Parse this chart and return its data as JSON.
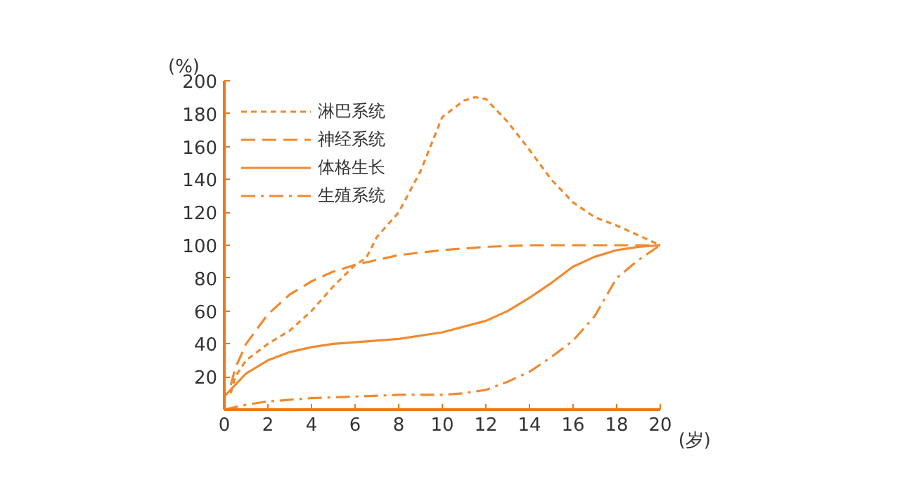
{
  "chart_data": {
    "type": "line",
    "xlabel": "(岁)",
    "ylabel": "(%)",
    "xlim": [
      0,
      20
    ],
    "ylim": [
      0,
      200
    ],
    "xticks": [
      0,
      2,
      4,
      6,
      8,
      10,
      12,
      14,
      16,
      18,
      20
    ],
    "yticks": [
      {
        "value": 0,
        "label": null
      },
      20,
      40,
      60,
      80,
      100,
      120,
      140,
      160,
      180,
      200
    ],
    "grid": false,
    "legend": "top left",
    "marker": "none",
    "series": [
      {
        "name": "淋巴系统",
        "color": "#f08a30",
        "line_style": "dotted",
        "x": [
          0.3,
          0.5,
          1,
          2,
          3,
          4,
          5,
          6,
          6.5,
          7,
          8,
          9,
          10,
          11,
          11.5,
          12,
          13,
          14,
          15,
          16,
          17,
          18,
          19,
          20
        ],
        "values": [
          10,
          20,
          30,
          40,
          48,
          60,
          75,
          88,
          92,
          105,
          120,
          145,
          178,
          188,
          190,
          189,
          175,
          158,
          140,
          126,
          117,
          112,
          106,
          100
        ]
      },
      {
        "name": "神经系统",
        "color": "#f08a30",
        "line_style": "dashed",
        "x": [
          0.3,
          0.5,
          1,
          2,
          3,
          4,
          5,
          6,
          8,
          10,
          12,
          14,
          20
        ],
        "values": [
          15,
          25,
          40,
          58,
          70,
          78,
          84,
          88,
          94,
          97,
          99,
          100,
          100
        ]
      },
      {
        "name": "体格生长",
        "color": "#f08a30",
        "line_style": "solid",
        "x": [
          0,
          0.5,
          1,
          2,
          3,
          4,
          5,
          6,
          8,
          10,
          12,
          13,
          14,
          15,
          16,
          17,
          18,
          19,
          20
        ],
        "values": [
          8,
          15,
          22,
          30,
          35,
          38,
          40,
          41,
          43,
          47,
          54,
          60,
          68,
          77,
          87,
          93,
          97,
          99,
          100
        ]
      },
      {
        "name": "生殖系统",
        "color": "#f08a30",
        "line_style": "dashdot",
        "x": [
          0,
          1,
          2,
          4,
          6,
          8,
          10,
          11,
          12,
          13,
          14,
          15,
          16,
          17,
          18,
          19,
          20
        ],
        "values": [
          0,
          3,
          5,
          7,
          8,
          9,
          9,
          10,
          12,
          17,
          23,
          32,
          42,
          57,
          80,
          91,
          100
        ]
      }
    ]
  }
}
